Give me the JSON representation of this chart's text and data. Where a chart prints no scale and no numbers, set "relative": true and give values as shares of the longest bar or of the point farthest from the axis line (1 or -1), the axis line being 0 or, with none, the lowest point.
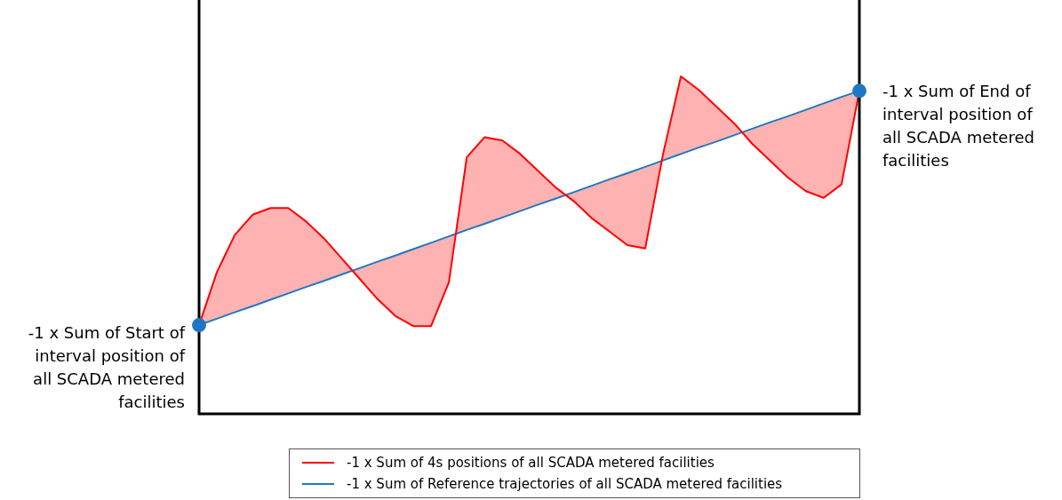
{
  "chart_data": {
    "type": "line",
    "relative": true,
    "legend": "bottom",
    "categories": [
      null,
      null,
      null,
      null,
      null,
      null,
      null,
      null,
      null,
      null,
      null,
      null,
      null,
      null,
      null,
      null,
      null,
      null,
      null,
      null,
      null,
      null,
      null,
      null,
      null,
      null,
      null,
      null,
      null,
      null,
      null,
      null,
      null,
      null,
      null,
      null,
      null,
      null
    ],
    "series": [
      {
        "name": "-1 x Sum of 4s positions of all SCADA metered facilities",
        "color": "#ff0000",
        "values": [
          0.263,
          0.42,
          0.53,
          0.59,
          0.61,
          0.61,
          0.57,
          0.52,
          0.46,
          0.4,
          0.34,
          0.29,
          0.26,
          0.26,
          0.39,
          0.76,
          0.82,
          0.81,
          0.77,
          0.72,
          0.67,
          0.63,
          0.58,
          0.54,
          0.5,
          0.49,
          0.77,
          1.0,
          0.96,
          0.91,
          0.86,
          0.8,
          0.75,
          0.7,
          0.66,
          0.64,
          0.68,
          0.957
        ],
        "lower": [
          0.263,
          0.282,
          0.301,
          0.319,
          0.338,
          0.357,
          0.376,
          0.394,
          0.413,
          0.432,
          0.451,
          0.469,
          0.488,
          0.507,
          0.526,
          0.545,
          0.563,
          0.582,
          0.601,
          0.62,
          0.638,
          0.657,
          0.676,
          0.695,
          0.713,
          0.732,
          0.751,
          0.77,
          0.789,
          0.807,
          0.826,
          0.845,
          0.864,
          0.882,
          0.901,
          0.92,
          0.939,
          0.957
        ],
        "upper": [
          0.263,
          0.42,
          0.53,
          0.59,
          0.61,
          0.61,
          0.57,
          0.52,
          0.46,
          0.4,
          0.34,
          0.29,
          0.26,
          0.26,
          0.39,
          0.76,
          0.82,
          0.81,
          0.77,
          0.72,
          0.67,
          0.63,
          0.58,
          0.54,
          0.5,
          0.49,
          0.77,
          1.0,
          0.96,
          0.91,
          0.86,
          0.8,
          0.75,
          0.7,
          0.66,
          0.64,
          0.68,
          0.957
        ]
      },
      {
        "name": "-1 x Sum of Reference trajectories of all SCADA metered facilities",
        "color": "#1f77c4",
        "values": [
          0.263,
          0.282,
          0.301,
          0.319,
          0.338,
          0.357,
          0.376,
          0.394,
          0.413,
          0.432,
          0.451,
          0.469,
          0.488,
          0.507,
          0.526,
          0.545,
          0.563,
          0.582,
          0.601,
          0.62,
          0.638,
          0.657,
          0.676,
          0.695,
          0.713,
          0.732,
          0.751,
          0.77,
          0.789,
          0.807,
          0.826,
          0.845,
          0.864,
          0.882,
          0.901,
          0.92,
          0.939,
          0.957
        ]
      }
    ],
    "annotations": [
      "-1 x Sum of Start of interval position of all SCADA metered facilities",
      "-1 x Sum of End of interval position of all SCADA metered facilities"
    ]
  }
}
